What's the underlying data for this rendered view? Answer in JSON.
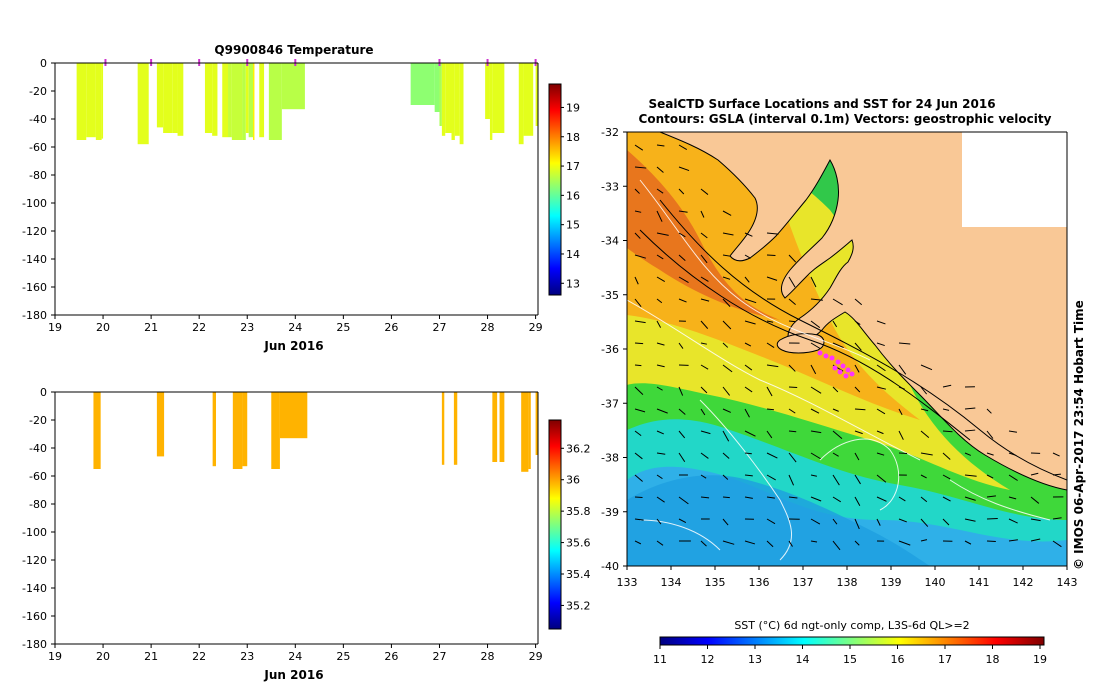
{
  "chart_data": [
    {
      "type": "bar",
      "title": "Q9900846  Temperature",
      "x_tick_labels": [
        "19",
        "20",
        "21",
        "22",
        "23",
        "24",
        "25",
        "26",
        "27",
        "28",
        "29"
      ],
      "xlim": [
        19,
        29.05
      ],
      "xlabel": "Jun 2016",
      "y_tick_labels": [
        "0",
        "-20",
        "-40",
        "-60",
        "-80",
        "-100",
        "-120",
        "-140",
        "-160",
        "-180"
      ],
      "ylim": [
        -180,
        0
      ],
      "colorbar": {
        "tick_labels": [
          "13",
          "14",
          "15",
          "16",
          "17",
          "18",
          "19"
        ],
        "range": [
          12.6,
          19.8
        ]
      },
      "profile_markers_day": [
        20.05,
        21.0,
        22.0,
        23.0,
        24.0,
        27.0,
        28.0,
        29.0
      ],
      "profiles": [
        {
          "x0": 19.45,
          "x1": 19.65,
          "depth": -55,
          "value": 16.9
        },
        {
          "x0": 19.65,
          "x1": 19.85,
          "depth": -53,
          "value": 16.9
        },
        {
          "x0": 19.85,
          "x1": 19.97,
          "depth": -55,
          "value": 16.9
        },
        {
          "x0": 19.97,
          "x1": 20.0,
          "depth": -54,
          "value": 16.9
        },
        {
          "x0": 20.72,
          "x1": 20.95,
          "depth": -58,
          "value": 16.9
        },
        {
          "x0": 21.12,
          "x1": 21.25,
          "depth": -46,
          "value": 16.9
        },
        {
          "x0": 21.25,
          "x1": 21.45,
          "depth": -50,
          "value": 16.9
        },
        {
          "x0": 21.45,
          "x1": 21.55,
          "depth": -50,
          "value": 16.9
        },
        {
          "x0": 21.55,
          "x1": 21.67,
          "depth": -52,
          "value": 16.9
        },
        {
          "x0": 22.12,
          "x1": 22.27,
          "depth": -50,
          "value": 16.9
        },
        {
          "x0": 22.27,
          "x1": 22.38,
          "depth": -52,
          "value": 16.9
        },
        {
          "x0": 22.48,
          "x1": 22.6,
          "depth": -53,
          "value": 16.9
        },
        {
          "x0": 22.6,
          "x1": 22.68,
          "depth": -53,
          "value": 16.7
        },
        {
          "x0": 22.68,
          "x1": 22.9,
          "depth": -55,
          "value": 16.7
        },
        {
          "x0": 22.9,
          "x1": 22.97,
          "depth": -55,
          "value": 16.6
        },
        {
          "x0": 22.97,
          "x1": 23.03,
          "depth": -50,
          "value": 16.9
        },
        {
          "x0": 23.03,
          "x1": 23.12,
          "depth": -53,
          "value": 16.6
        },
        {
          "x0": 23.12,
          "x1": 23.15,
          "depth": -55,
          "value": 17.2
        },
        {
          "x0": 23.25,
          "x1": 23.35,
          "depth": -53,
          "value": 16.9
        },
        {
          "x0": 23.45,
          "x1": 23.72,
          "depth": -55,
          "value": 16.6
        },
        {
          "x0": 23.72,
          "x1": 24.2,
          "depth": -33,
          "value": 16.6
        },
        {
          "x0": 26.4,
          "x1": 26.9,
          "depth": -30,
          "value": 16.3
        },
        {
          "x0": 26.9,
          "x1": 27.0,
          "depth": -35,
          "value": 16.3
        },
        {
          "x0": 27.0,
          "x1": 27.05,
          "depth": -45,
          "value": 16.5
        },
        {
          "x0": 27.05,
          "x1": 27.12,
          "depth": -52,
          "value": 16.9
        },
        {
          "x0": 27.12,
          "x1": 27.25,
          "depth": -50,
          "value": 16.9
        },
        {
          "x0": 27.25,
          "x1": 27.32,
          "depth": -55,
          "value": 16.9
        },
        {
          "x0": 27.32,
          "x1": 27.42,
          "depth": -52,
          "value": 16.9
        },
        {
          "x0": 27.42,
          "x1": 27.5,
          "depth": -58,
          "value": 16.9
        },
        {
          "x0": 27.95,
          "x1": 28.05,
          "depth": -40,
          "value": 16.9
        },
        {
          "x0": 28.05,
          "x1": 28.1,
          "depth": -55,
          "value": 16.9
        },
        {
          "x0": 28.1,
          "x1": 28.35,
          "depth": -50,
          "value": 16.9
        },
        {
          "x0": 28.65,
          "x1": 28.75,
          "depth": -58,
          "value": 16.9
        },
        {
          "x0": 28.75,
          "x1": 28.95,
          "depth": -52,
          "value": 16.9
        },
        {
          "x0": 29.0,
          "x1": 29.05,
          "depth": -45,
          "value": 16.9
        }
      ]
    },
    {
      "type": "bar",
      "title": "",
      "x_tick_labels": [
        "19",
        "20",
        "21",
        "22",
        "23",
        "24",
        "25",
        "26",
        "27",
        "28",
        "29"
      ],
      "xlim": [
        19,
        29.05
      ],
      "xlabel": "Jun 2016",
      "y_tick_labels": [
        "0",
        "-20",
        "-40",
        "-60",
        "-80",
        "-100",
        "-120",
        "-140",
        "-160",
        "-180"
      ],
      "ylim": [
        -180,
        0
      ],
      "colorbar": {
        "tick_labels": [
          "35.2",
          "35.4",
          "35.6",
          "35.8",
          "36",
          "36.2"
        ],
        "range": [
          35.05,
          36.38
        ]
      },
      "profiles": [
        {
          "x0": 19.8,
          "x1": 19.95,
          "depth": -55,
          "value": 35.98
        },
        {
          "x0": 21.12,
          "x1": 21.27,
          "depth": -46,
          "value": 35.98
        },
        {
          "x0": 22.28,
          "x1": 22.35,
          "depth": -53,
          "value": 35.98
        },
        {
          "x0": 22.7,
          "x1": 22.9,
          "depth": -55,
          "value": 35.98
        },
        {
          "x0": 22.9,
          "x1": 23.0,
          "depth": -53,
          "value": 35.98
        },
        {
          "x0": 23.5,
          "x1": 23.68,
          "depth": -55,
          "value": 35.98
        },
        {
          "x0": 23.68,
          "x1": 24.25,
          "depth": -33,
          "value": 35.98
        },
        {
          "x0": 27.05,
          "x1": 27.1,
          "depth": -52,
          "value": 35.98
        },
        {
          "x0": 27.3,
          "x1": 27.37,
          "depth": -52,
          "value": 35.98
        },
        {
          "x0": 28.1,
          "x1": 28.2,
          "depth": -50,
          "value": 35.98
        },
        {
          "x0": 28.25,
          "x1": 28.35,
          "depth": -50,
          "value": 35.98
        },
        {
          "x0": 28.7,
          "x1": 28.85,
          "depth": -57,
          "value": 35.98
        },
        {
          "x0": 28.85,
          "x1": 28.9,
          "depth": -55,
          "value": 35.98
        },
        {
          "x0": 29.0,
          "x1": 29.05,
          "depth": -45,
          "value": 35.98
        }
      ]
    },
    {
      "type": "heatmap",
      "title": "SealCTD Surface Locations and SST for 24 Jun 2016",
      "subtitle": "Contours: GSLA (interval 0.1m) Vectors: geostrophic velocity",
      "x_tick_labels": [
        "133",
        "134",
        "135",
        "136",
        "137",
        "138",
        "139",
        "140",
        "141",
        "142",
        "143"
      ],
      "xlim": [
        133,
        143
      ],
      "y_tick_labels": [
        "-32",
        "-33",
        "-34",
        "-35",
        "-36",
        "-37",
        "-38",
        "-39",
        "-40"
      ],
      "ylim": [
        -40,
        -32
      ],
      "credit": "© IMOS 06-Apr-2017 23:54 Hobart Time",
      "colorbar": {
        "label": "SST (°C) 6d ngt-only comp, L3S-6d QL>=2",
        "tick_labels": [
          "11",
          "12",
          "13",
          "14",
          "15",
          "16",
          "17",
          "18",
          "19"
        ],
        "range": [
          11,
          19
        ]
      },
      "land_color": "#f9c896",
      "seal_locations_color": "#ff33ff"
    }
  ],
  "colors": {
    "jet_stops": [
      "#00007f",
      "#0000ff",
      "#007fff",
      "#00ffff",
      "#7fff7f",
      "#ffff00",
      "#ff7f00",
      "#ff0000",
      "#7f0000"
    ]
  }
}
